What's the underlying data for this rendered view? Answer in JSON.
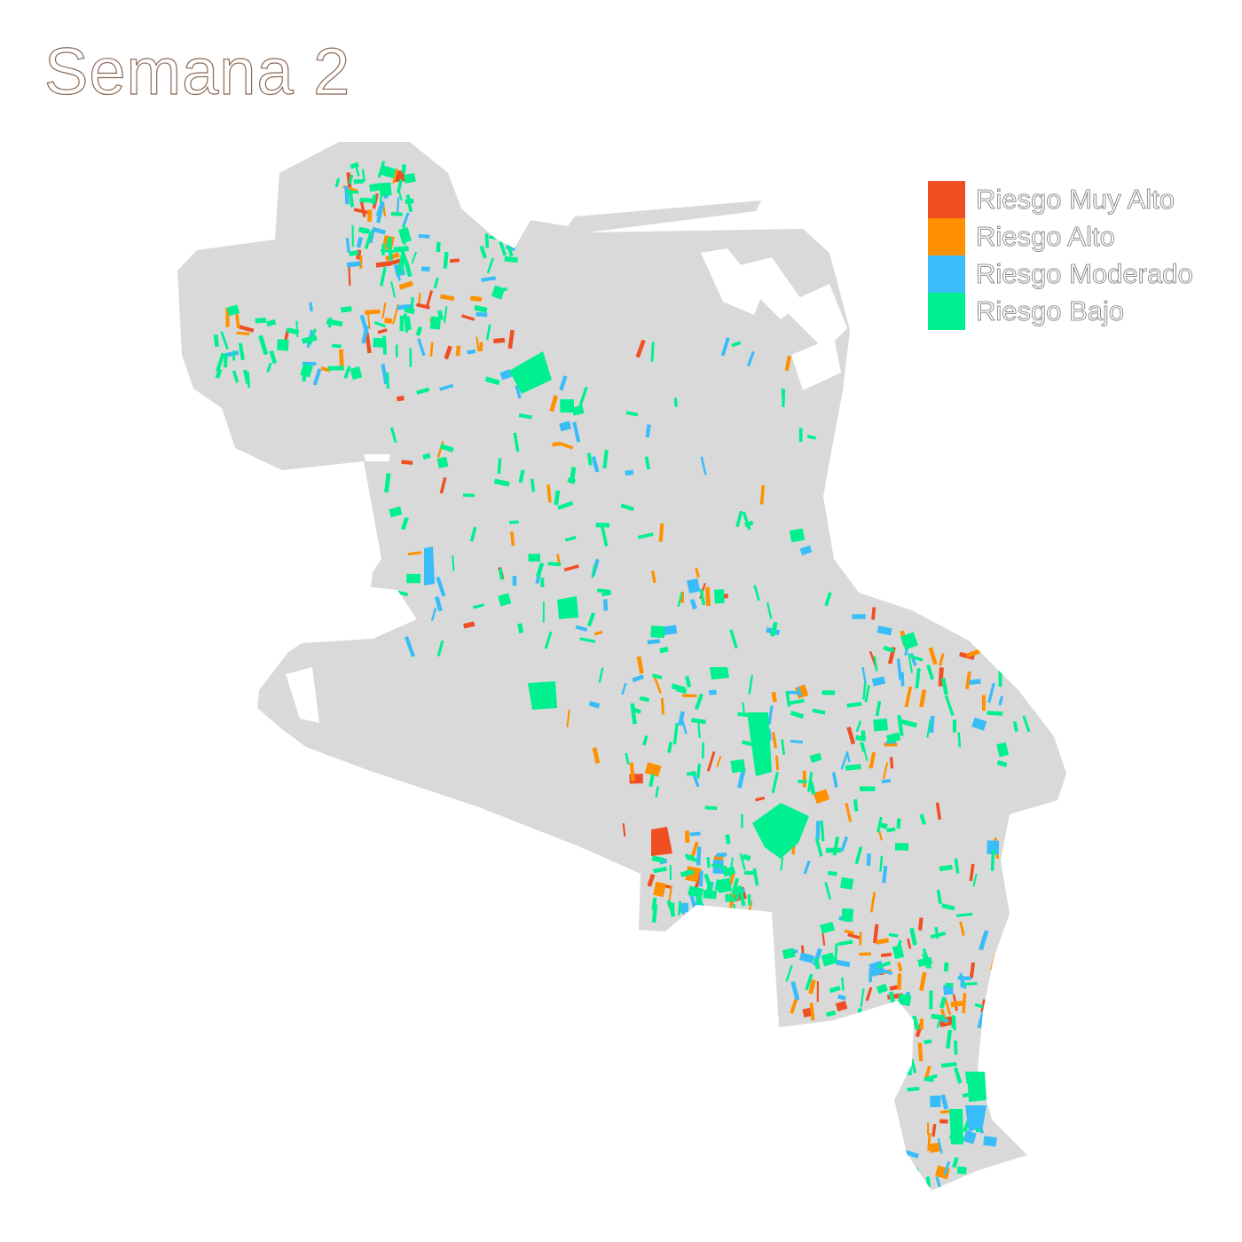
{
  "title": "Semana 2",
  "legend": {
    "items": [
      {
        "label": "Riesgo Muy Alto",
        "color": "#f04e23"
      },
      {
        "label": "Riesgo Alto",
        "color": "#ff9100"
      },
      {
        "label": "Riesgo Moderado",
        "color": "#38bdf8"
      },
      {
        "label": "Riesgo Bajo",
        "color": "#00f090"
      }
    ]
  },
  "map": {
    "base_color": "#d9d9d9",
    "risk_order": [
      "muy_alto",
      "alto",
      "moderado",
      "bajo"
    ],
    "blocks_per_level": {
      "muy_alto": 70,
      "alto": 110,
      "moderado": 140,
      "bajo": 380
    }
  }
}
